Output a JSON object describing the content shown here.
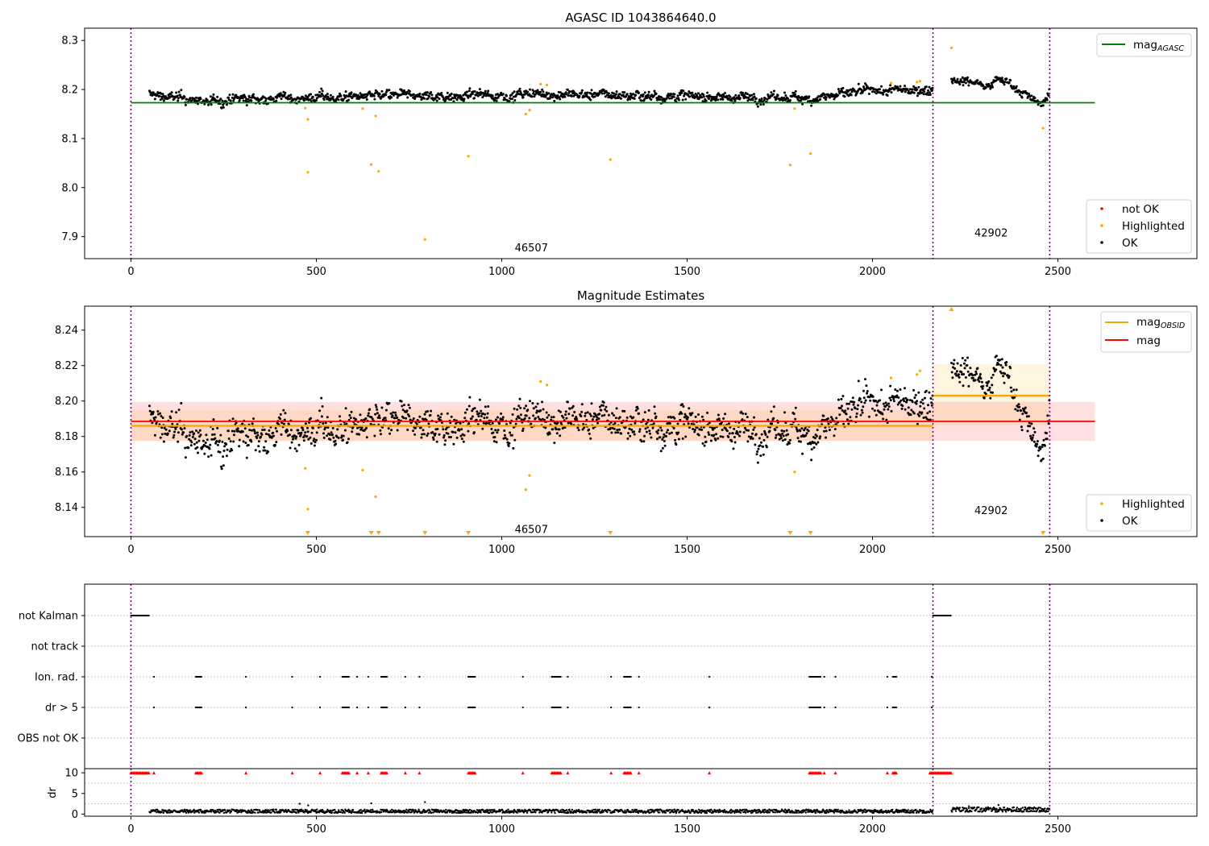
{
  "figure": {
    "colors": {
      "ok": "#000000",
      "highlighted": "#FFA500",
      "not_ok": "#FF0000",
      "agasc_line": "#008000",
      "mag_line": "#FF0000",
      "obsid_line": "#FFA500",
      "obs_boundary": "#800080"
    }
  },
  "chart_data": [
    {
      "id": "top",
      "type": "scatter",
      "title": "AGASC ID 1043864640.0",
      "xlim": [
        -125,
        2875
      ],
      "ylim": [
        7.855,
        8.325
      ],
      "x_ticks": [
        0,
        500,
        1000,
        1500,
        2000,
        2500
      ],
      "y_ticks": [
        7.9,
        8.0,
        8.1,
        8.2,
        8.3
      ],
      "y_tick_labels": [
        "7.9",
        "8.0",
        "8.1",
        "8.2",
        "8.3"
      ],
      "obs_boundaries": [
        0,
        2163,
        2478
      ],
      "obsid_labels": [
        {
          "text": "46507",
          "x": 1080,
          "y": 7.875
        },
        {
          "text": "42902",
          "x": 2320,
          "y": 7.905
        }
      ],
      "lines": [
        {
          "name": "mag_AGASC",
          "label_main": "mag",
          "label_sub": "AGASC",
          "x": [
            0,
            2600
          ],
          "y": [
            8.173,
            8.173
          ],
          "color": "#008000"
        }
      ],
      "legend_lines_position": "upper right",
      "legend_points": [
        "not OK",
        "Highlighted",
        "OK"
      ],
      "legend_points_position": "lower right",
      "ok_segments": [
        {
          "x_start": 50,
          "x_end": 2163,
          "knots": [
            [
              50,
              8.19
            ],
            [
              200,
              8.175
            ],
            [
              400,
              8.183
            ],
            [
              800,
              8.187
            ],
            [
              1100,
              8.19
            ],
            [
              1400,
              8.188
            ],
            [
              1800,
              8.182
            ],
            [
              2000,
              8.195
            ],
            [
              2163,
              8.202
            ]
          ],
          "noise": 0.009
        },
        {
          "x_start": 2213,
          "x_end": 2478,
          "knots": [
            [
              2213,
              8.222
            ],
            [
              2300,
              8.212
            ],
            [
              2350,
              8.222
            ],
            [
              2400,
              8.2
            ],
            [
              2445,
              8.168
            ],
            [
              2478,
              8.188
            ]
          ],
          "noise": 0.007
        }
      ],
      "highlighted_points": [
        [
          470,
          8.162
        ],
        [
          477,
          8.139
        ],
        [
          477,
          8.031
        ],
        [
          625,
          8.161
        ],
        [
          648,
          8.047
        ],
        [
          660,
          8.146
        ],
        [
          668,
          8.033
        ],
        [
          793,
          7.894
        ],
        [
          910,
          8.064
        ],
        [
          1065,
          8.15
        ],
        [
          1075,
          8.158
        ],
        [
          1105,
          8.211
        ],
        [
          1122,
          8.209
        ],
        [
          1293,
          8.057
        ],
        [
          1778,
          8.046
        ],
        [
          1790,
          8.161
        ],
        [
          1833,
          8.069
        ],
        [
          2050,
          8.213
        ],
        [
          2120,
          8.215
        ],
        [
          2128,
          8.217
        ],
        [
          2213,
          8.285
        ],
        [
          2460,
          8.121
        ]
      ],
      "not_ok_points": []
    },
    {
      "id": "middle",
      "type": "scatter",
      "title": "Magnitude Estimates",
      "xlim": [
        -125,
        2875
      ],
      "ylim": [
        8.1235,
        8.2535
      ],
      "x_ticks": [
        0,
        500,
        1000,
        1500,
        2000,
        2500
      ],
      "y_ticks": [
        8.14,
        8.16,
        8.18,
        8.2,
        8.22,
        8.24
      ],
      "y_tick_labels": [
        "8.14",
        "8.16",
        "8.18",
        "8.20",
        "8.22",
        "8.24"
      ],
      "obs_boundaries": [
        0,
        2163,
        2478
      ],
      "obsid_labels": [
        {
          "text": "46507",
          "x": 1080,
          "y": 8.127
        },
        {
          "text": "42902",
          "x": 2320,
          "y": 8.1375
        }
      ],
      "lines": [
        {
          "name": "mag_OBSID",
          "label_main": "mag",
          "label_sub": "OBSID",
          "segments": [
            {
              "x": [
                0,
                2163
              ],
              "y": 8.186
            },
            {
              "x": [
                2163,
                2478
              ],
              "y": 8.203
            }
          ],
          "color": "#FFA500"
        },
        {
          "name": "mag",
          "label_main": "mag",
          "label_sub": "",
          "x": [
            0,
            2600
          ],
          "y": 8.1885,
          "color": "#FF0000"
        }
      ],
      "bands": [
        {
          "x": [
            0,
            2600
          ],
          "y": [
            8.1775,
            8.1995
          ],
          "color": "#FF0000",
          "alpha": 0.12
        },
        {
          "x": [
            0,
            2163
          ],
          "y": [
            8.1775,
            8.195
          ],
          "color": "#FFA500",
          "alpha": 0.12
        },
        {
          "x": [
            2163,
            2478
          ],
          "y": [
            8.186,
            8.221
          ],
          "color": "#FFA500",
          "alpha": 0.12
        }
      ],
      "legend_lines_position": "upper right",
      "legend_points": [
        "Highlighted",
        "OK"
      ],
      "legend_points_position": "lower right",
      "ok_segments": [
        {
          "x_start": 50,
          "x_end": 2163,
          "knots": [
            [
              50,
              8.19
            ],
            [
              200,
              8.175
            ],
            [
              400,
              8.183
            ],
            [
              800,
              8.187
            ],
            [
              1100,
              8.19
            ],
            [
              1400,
              8.188
            ],
            [
              1800,
              8.182
            ],
            [
              2000,
              8.195
            ],
            [
              2163,
              8.202
            ]
          ],
          "noise": 0.009
        },
        {
          "x_start": 2213,
          "x_end": 2478,
          "knots": [
            [
              2213,
              8.222
            ],
            [
              2300,
              8.212
            ],
            [
              2350,
              8.222
            ],
            [
              2400,
              8.2
            ],
            [
              2445,
              8.168
            ],
            [
              2478,
              8.188
            ]
          ],
          "noise": 0.007
        }
      ],
      "highlighted_points": [
        [
          470,
          8.162
        ],
        [
          477,
          8.139
        ],
        [
          625,
          8.161
        ],
        [
          660,
          8.146
        ],
        [
          1065,
          8.15
        ],
        [
          1075,
          8.158
        ],
        [
          1105,
          8.211
        ],
        [
          1122,
          8.209
        ],
        [
          1790,
          8.16
        ],
        [
          2050,
          8.213
        ],
        [
          2120,
          8.215
        ],
        [
          2128,
          8.217
        ]
      ],
      "highlighted_offscale_low_x": [
        477,
        648,
        668,
        793,
        910,
        1293,
        1778,
        1833,
        2460
      ],
      "highlighted_offscale_high_x": [
        2213
      ]
    },
    {
      "id": "flags",
      "type": "scatter",
      "xlim": [
        -125,
        2875
      ],
      "categories": [
        "not Kalman",
        "not track",
        "Ion. rad.",
        "dr > 5",
        "OBS not OK"
      ],
      "flag_runs": {
        "not Kalman": [
          [
            0,
            50
          ],
          [
            2163,
            2213
          ]
        ],
        "not track": [],
        "Ion. rad.": [
          [
            62,
            62
          ],
          [
            175,
            190
          ],
          [
            310,
            310
          ],
          [
            435,
            435
          ],
          [
            510,
            510
          ],
          [
            570,
            590
          ],
          [
            610,
            610
          ],
          [
            640,
            640
          ],
          [
            675,
            690
          ],
          [
            740,
            740
          ],
          [
            778,
            778
          ],
          [
            910,
            930
          ],
          [
            1057,
            1057
          ],
          [
            1135,
            1160
          ],
          [
            1178,
            1178
          ],
          [
            1295,
            1295
          ],
          [
            1330,
            1350
          ],
          [
            1370,
            1370
          ],
          [
            1560,
            1560
          ],
          [
            1830,
            1860
          ],
          [
            1870,
            1870
          ],
          [
            1900,
            1900
          ],
          [
            2040,
            2040
          ],
          [
            2055,
            2065
          ],
          [
            2160,
            2160
          ]
        ],
        "dr > 5": [
          [
            62,
            62
          ],
          [
            175,
            190
          ],
          [
            310,
            310
          ],
          [
            435,
            435
          ],
          [
            510,
            510
          ],
          [
            570,
            590
          ],
          [
            610,
            610
          ],
          [
            640,
            640
          ],
          [
            675,
            690
          ],
          [
            740,
            740
          ],
          [
            778,
            778
          ],
          [
            910,
            930
          ],
          [
            1057,
            1057
          ],
          [
            1135,
            1160
          ],
          [
            1178,
            1178
          ],
          [
            1295,
            1295
          ],
          [
            1330,
            1350
          ],
          [
            1370,
            1370
          ],
          [
            1560,
            1560
          ],
          [
            1830,
            1860
          ],
          [
            1870,
            1870
          ],
          [
            1900,
            1900
          ],
          [
            2040,
            2040
          ],
          [
            2055,
            2065
          ],
          [
            2160,
            2160
          ]
        ],
        "OBS not OK": []
      }
    },
    {
      "id": "dr",
      "type": "scatter",
      "ylabel": "dr",
      "xlim": [
        -125,
        2875
      ],
      "ylim": [
        -0.5,
        11
      ],
      "x_ticks": [
        0,
        500,
        1000,
        1500,
        2000,
        2500
      ],
      "y_ticks": [
        0,
        5,
        10
      ],
      "y_tick_labels": [
        "0",
        "5",
        "10"
      ],
      "obs_boundaries": [
        0,
        2163,
        2478
      ],
      "dr_segments": [
        {
          "x_start": 50,
          "x_end": 2163,
          "base": 0.7,
          "spread": 0.6
        },
        {
          "x_start": 2213,
          "x_end": 2478,
          "base": 1.1,
          "spread": 0.8
        }
      ],
      "dr_spikes": [
        [
          455,
          2.5
        ],
        [
          478,
          2.1
        ],
        [
          648,
          2.6
        ],
        [
          793,
          2.9
        ],
        [
          2260,
          1.9
        ],
        [
          2340,
          2.2
        ]
      ],
      "capped_red_x": [
        [
          0,
          50
        ],
        [
          62,
          62
        ],
        [
          175,
          190
        ],
        [
          310,
          310
        ],
        [
          435,
          435
        ],
        [
          510,
          510
        ],
        [
          570,
          590
        ],
        [
          610,
          610
        ],
        [
          640,
          640
        ],
        [
          675,
          690
        ],
        [
          740,
          740
        ],
        [
          778,
          778
        ],
        [
          910,
          930
        ],
        [
          1057,
          1057
        ],
        [
          1135,
          1160
        ],
        [
          1178,
          1178
        ],
        [
          1295,
          1295
        ],
        [
          1330,
          1350
        ],
        [
          1370,
          1370
        ],
        [
          1560,
          1560
        ],
        [
          1830,
          1860
        ],
        [
          1870,
          1870
        ],
        [
          1900,
          1900
        ],
        [
          2040,
          2040
        ],
        [
          2055,
          2065
        ],
        [
          2155,
          2213
        ]
      ],
      "capped_value": 10
    }
  ]
}
